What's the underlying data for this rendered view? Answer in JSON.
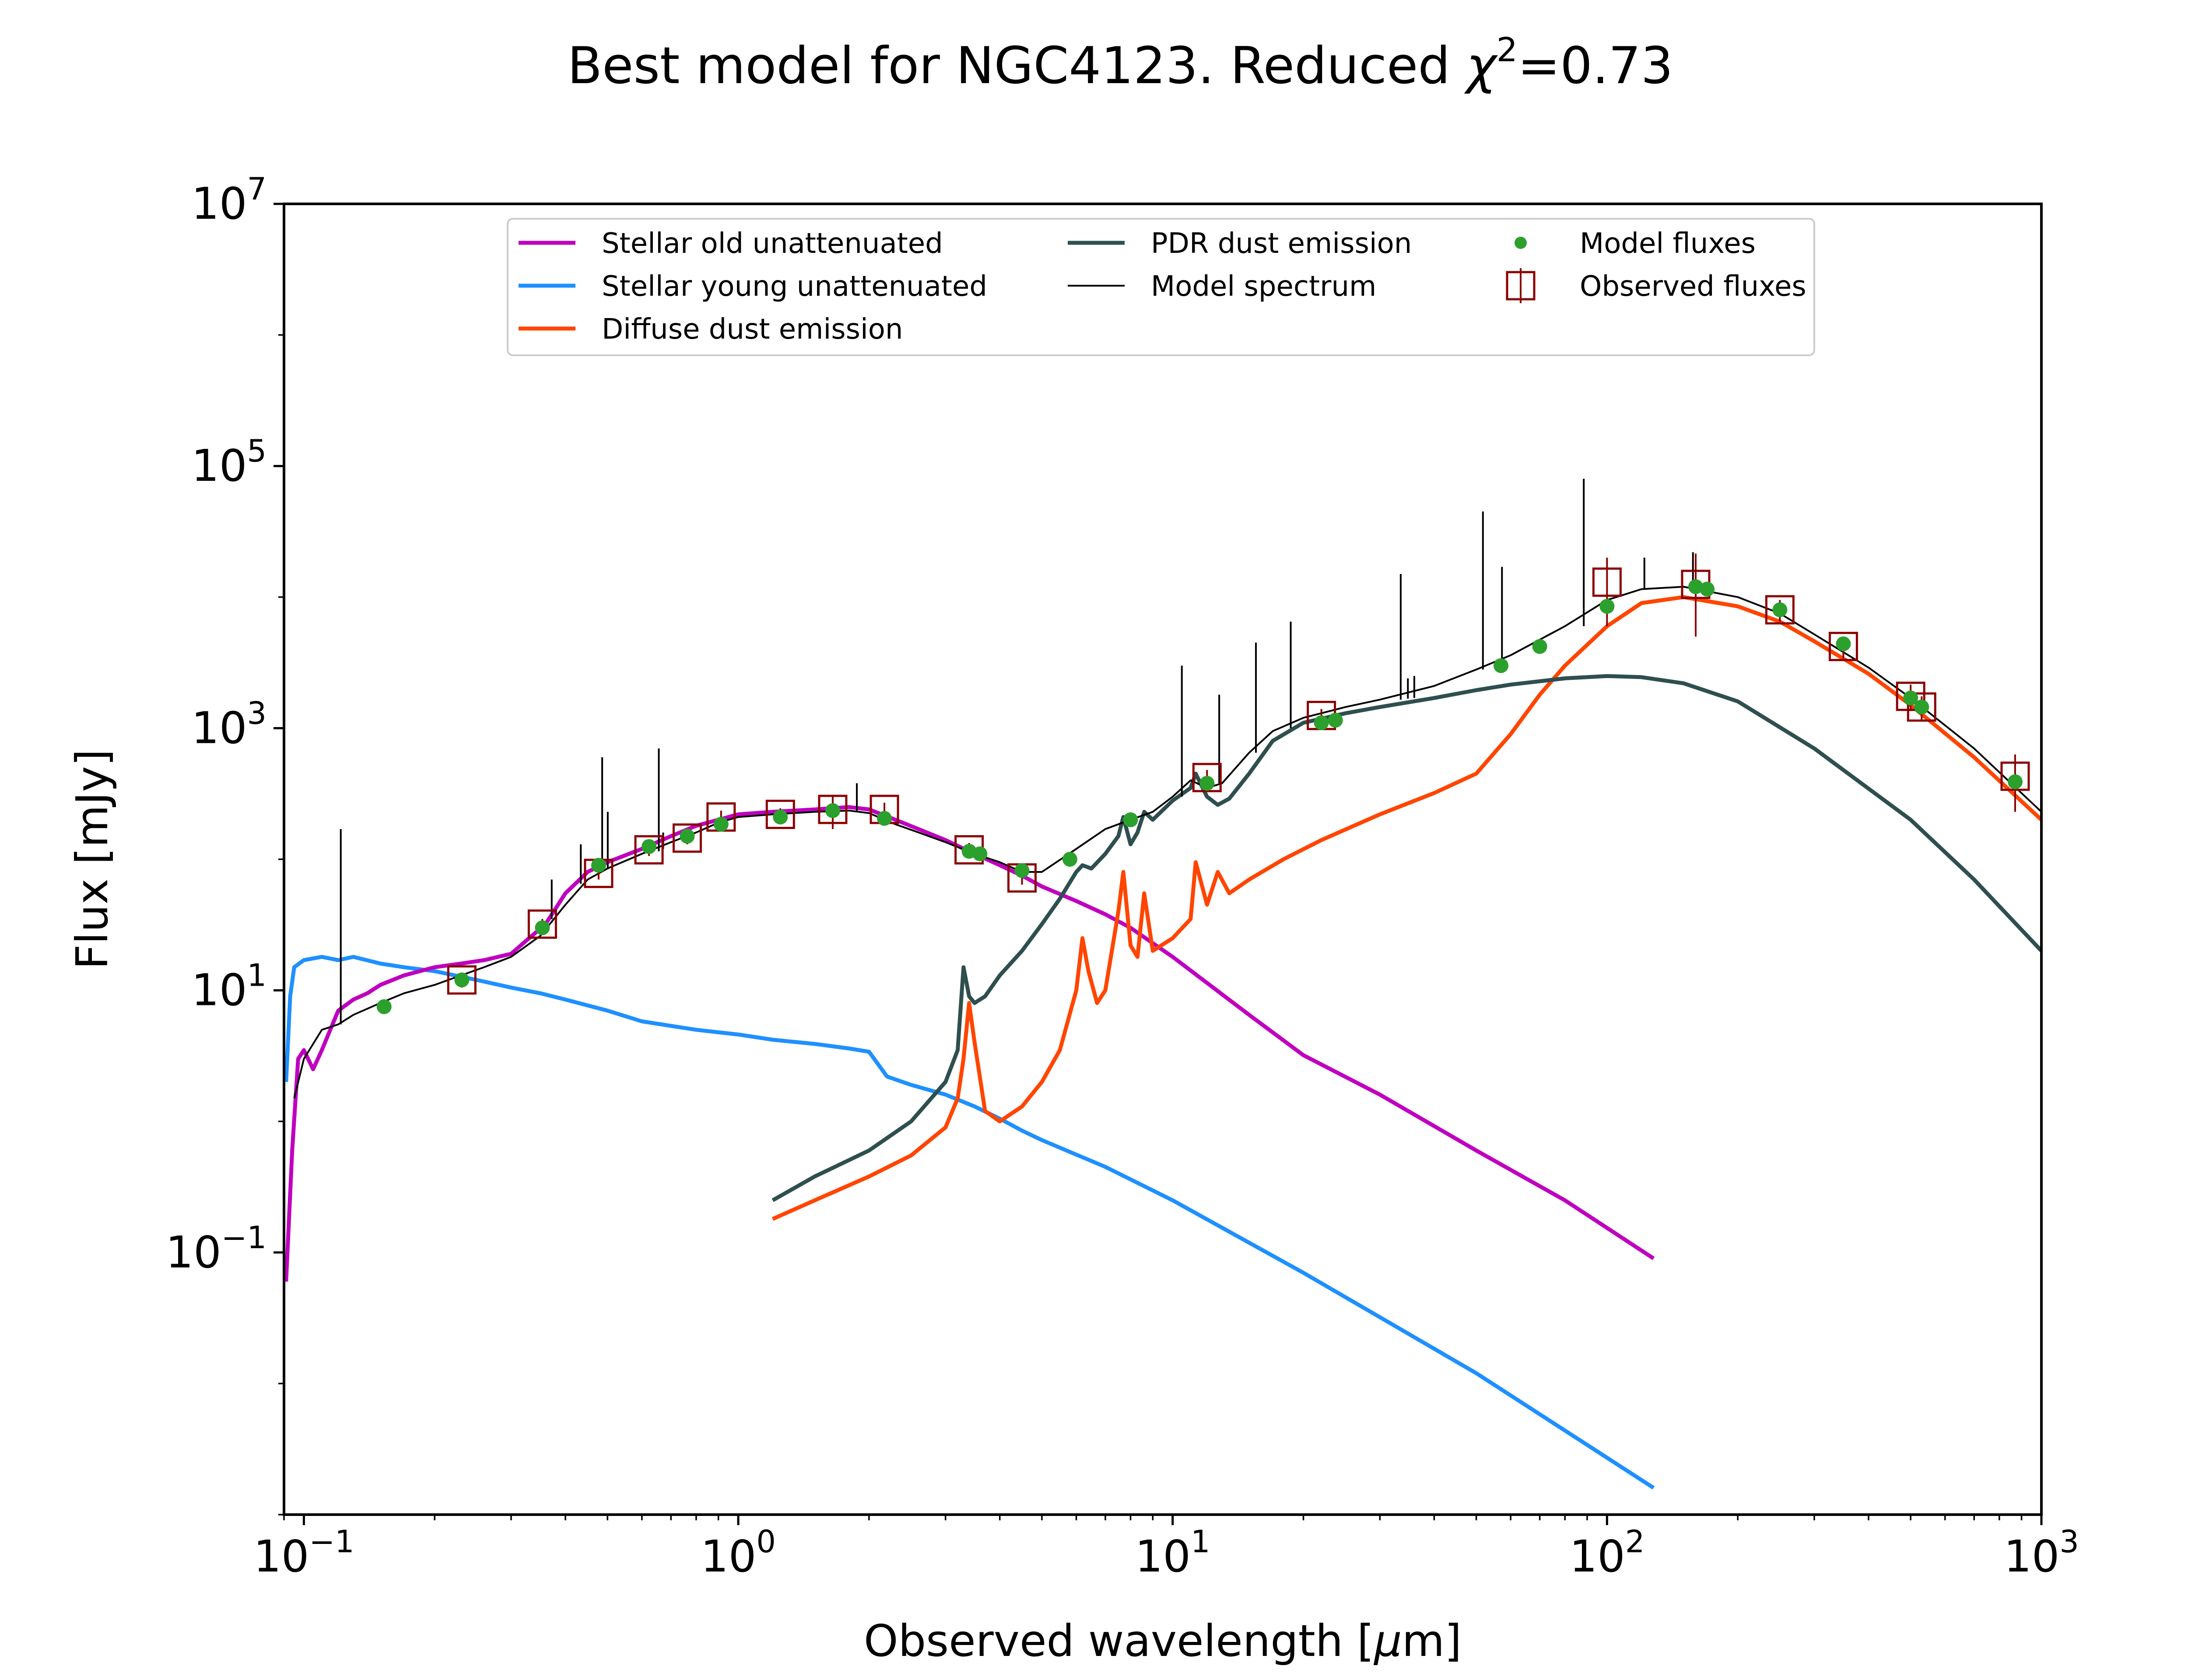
{
  "chart_data": {
    "type": "line",
    "title": "Best model for NGC4123. Reduced χ²=0.73",
    "title_parts": {
      "main": "Best model for NGC4123. Reduced ",
      "chi": "χ",
      "sup": "2",
      "value": "=0.73"
    },
    "xlabel": "Observed wavelength [μm]",
    "xlabel_parts": {
      "pre": "Observed wavelength [",
      "mu": "μ",
      "post": "m]"
    },
    "ylabel": "Flux [mJy]",
    "x_scale": "log",
    "y_scale": "log",
    "xlim": [
      0.09,
      1000
    ],
    "ylim": [
      0.001,
      10000000
    ],
    "x_ticks": [
      {
        "value": 0.1,
        "base": "10",
        "exp": "−1"
      },
      {
        "value": 1,
        "base": "10",
        "exp": "0"
      },
      {
        "value": 10,
        "base": "10",
        "exp": "1"
      },
      {
        "value": 100,
        "base": "10",
        "exp": "2"
      },
      {
        "value": 1000,
        "base": "10",
        "exp": "3"
      }
    ],
    "y_ticks": [
      {
        "value": 0.1,
        "base": "10",
        "exp": "−1"
      },
      {
        "value": 10,
        "base": "10",
        "exp": "1"
      },
      {
        "value": 1000,
        "base": "10",
        "exp": "3"
      },
      {
        "value": 100000,
        "base": "10",
        "exp": "5"
      },
      {
        "value": 10000000,
        "base": "10",
        "exp": "7"
      }
    ],
    "legend_position": "upper-center",
    "series": [
      {
        "name": "Stellar old unattenuated",
        "color": "#bf00bf",
        "x": [
          0.091,
          0.094,
          0.097,
          0.1,
          0.105,
          0.11,
          0.115,
          0.12,
          0.13,
          0.14,
          0.15,
          0.17,
          0.2,
          0.23,
          0.26,
          0.3,
          0.33,
          0.36,
          0.4,
          0.45,
          0.5,
          0.6,
          0.7,
          0.8,
          0.9,
          1.0,
          1.2,
          1.5,
          1.8,
          2.0,
          2.3,
          2.6,
          3.0,
          3.5,
          4.0,
          4.5,
          5.0,
          6.0,
          7.0,
          8.0,
          10,
          15,
          20,
          30,
          50,
          80,
          128
        ],
        "y": [
          0.06,
          0.6,
          3.0,
          3.5,
          2.5,
          3.5,
          5.0,
          7.0,
          8.5,
          9.5,
          11.0,
          13.0,
          15.0,
          16.0,
          17.0,
          19.0,
          25.0,
          32.0,
          55.0,
          80.0,
          95.0,
          120.0,
          150.0,
          180.0,
          200.0,
          220.0,
          230.0,
          240.0,
          250.0,
          240.0,
          200.0,
          170.0,
          140.0,
          110.0,
          90.0,
          75.0,
          62.0,
          48.0,
          38.0,
          30.0,
          18.0,
          6.5,
          3.2,
          1.6,
          0.6,
          0.25,
          0.09
        ]
      },
      {
        "name": "Stellar young unattenuated",
        "color": "#1e90ff",
        "x": [
          0.091,
          0.093,
          0.095,
          0.1,
          0.11,
          0.12,
          0.13,
          0.15,
          0.17,
          0.2,
          0.25,
          0.3,
          0.35,
          0.4,
          0.5,
          0.6,
          0.8,
          1.0,
          1.2,
          1.5,
          1.8,
          2.0,
          2.2,
          2.5,
          3.0,
          3.5,
          4.0,
          4.5,
          5.0,
          7.0,
          10,
          20,
          50,
          128
        ],
        "y": [
          2.0,
          9.0,
          15.0,
          17.0,
          18.0,
          17.0,
          18.0,
          16.0,
          15.0,
          14.0,
          12.0,
          10.5,
          9.5,
          8.5,
          7.0,
          5.8,
          5.0,
          4.6,
          4.2,
          3.9,
          3.6,
          3.4,
          2.2,
          1.9,
          1.6,
          1.3,
          1.05,
          0.85,
          0.72,
          0.45,
          0.25,
          0.07,
          0.012,
          0.0016
        ]
      },
      {
        "name": "Diffuse dust emission",
        "color": "#ff4500",
        "x": [
          1.2,
          1.5,
          2.0,
          2.5,
          3.0,
          3.2,
          3.3,
          3.4,
          3.5,
          3.7,
          4.0,
          4.5,
          5.0,
          5.5,
          6.0,
          6.2,
          6.4,
          6.7,
          7.0,
          7.5,
          7.7,
          8.0,
          8.3,
          8.6,
          9.0,
          10,
          11,
          11.3,
          12,
          12.7,
          13.5,
          15,
          18,
          22,
          30,
          40,
          50,
          60,
          70,
          80,
          100,
          120,
          150,
          200,
          250,
          300,
          400,
          500,
          700,
          1000
        ],
        "y": [
          0.18,
          0.25,
          0.38,
          0.55,
          0.9,
          1.5,
          3.0,
          8.0,
          4.0,
          1.2,
          1.0,
          1.3,
          2.0,
          3.5,
          10.0,
          25.0,
          14.0,
          8.0,
          10.0,
          40.0,
          80.0,
          22.0,
          18.0,
          55.0,
          20.0,
          25.0,
          35.0,
          95.0,
          45.0,
          80.0,
          55.0,
          70.0,
          100.0,
          140.0,
          220.0,
          320.0,
          450.0,
          900.0,
          1800.0,
          3000.0,
          6000.0,
          9000.0,
          10000.0,
          8500.0,
          6500.0,
          4600.0,
          2600.0,
          1500.0,
          600.0,
          200.0
        ]
      },
      {
        "name": "PDR dust emission",
        "color": "#2f4f4f",
        "x": [
          1.2,
          1.5,
          2.0,
          2.5,
          3.0,
          3.2,
          3.3,
          3.4,
          3.5,
          3.7,
          4.0,
          4.5,
          5.0,
          5.5,
          6.0,
          6.2,
          6.5,
          7.0,
          7.5,
          7.7,
          8.0,
          8.3,
          8.6,
          9.0,
          10,
          11,
          11.3,
          12,
          12.7,
          13.5,
          15,
          17,
          20,
          25,
          30,
          40,
          50,
          60,
          80,
          100,
          120,
          150,
          200,
          300,
          500,
          700,
          1000
        ],
        "y": [
          0.25,
          0.38,
          0.6,
          1.0,
          2.0,
          3.5,
          15.0,
          9.0,
          8.0,
          9.0,
          13.0,
          20.0,
          32.0,
          50.0,
          80.0,
          90.0,
          85.0,
          110.0,
          150.0,
          210.0,
          130.0,
          160.0,
          230.0,
          200.0,
          280.0,
          350.0,
          450.0,
          300.0,
          260.0,
          290.0,
          450.0,
          800.0,
          1100.0,
          1300.0,
          1450.0,
          1700.0,
          1950.0,
          2150.0,
          2400.0,
          2500.0,
          2450.0,
          2200.0,
          1600.0,
          700.0,
          200.0,
          70.0,
          20.0
        ]
      },
      {
        "name": "Model spectrum",
        "color": "#000000",
        "x": [
          0.095,
          0.1,
          0.11,
          0.12,
          0.13,
          0.15,
          0.17,
          0.2,
          0.23,
          0.26,
          0.3,
          0.35,
          0.4,
          0.45,
          0.5,
          0.6,
          0.7,
          0.8,
          0.9,
          1.0,
          1.2,
          1.5,
          1.8,
          2.0,
          2.3,
          2.6,
          3.0,
          3.5,
          4.0,
          4.5,
          5.0,
          6.0,
          7.0,
          8.0,
          9.0,
          10,
          11,
          12,
          13,
          15,
          17,
          20,
          25,
          30,
          40,
          50,
          60,
          80,
          100,
          120,
          150,
          200,
          250,
          300,
          400,
          500,
          700,
          1000
        ],
        "y": [
          1.5,
          3.0,
          5.0,
          5.5,
          6.5,
          8.0,
          9.5,
          11.0,
          13.0,
          15.0,
          18.0,
          26.0,
          45.0,
          70.0,
          85.0,
          110.0,
          135.0,
          160.0,
          190.0,
          210.0,
          220.0,
          230.0,
          235.0,
          225.0,
          185.0,
          160.0,
          135.0,
          110.0,
          95.0,
          80.0,
          80.0,
          120.0,
          170.0,
          200.0,
          230.0,
          300.0,
          400.0,
          350.0,
          380.0,
          650.0,
          950.0,
          1200.0,
          1450.0,
          1650.0,
          2100.0,
          2800.0,
          3600.0,
          6000.0,
          9500.0,
          11500.0,
          12000.0,
          10000.0,
          7500.0,
          5200.0,
          2900.0,
          1700.0,
          700.0,
          230.0
        ]
      },
      {
        "name": "Model fluxes",
        "color": "#2ca02c",
        "type": "scatter",
        "x": [
          0.153,
          0.231,
          0.354,
          0.477,
          0.623,
          0.763,
          0.913,
          1.25,
          1.65,
          2.17,
          3.4,
          3.6,
          4.5,
          5.8,
          8.0,
          12.0,
          22.0,
          23.7,
          57.0,
          70.0,
          100.0,
          160.0,
          170.0,
          250.0,
          350.0,
          500.0,
          530.0,
          870.0
        ],
        "y": [
          7.5,
          12.0,
          30.0,
          90.0,
          125.0,
          150.0,
          185.0,
          210.0,
          235.0,
          205.0,
          115.0,
          110.0,
          82.0,
          100.0,
          200.0,
          380.0,
          1100.0,
          1150.0,
          3000.0,
          4200.0,
          8500.0,
          12000.0,
          11500.0,
          8000.0,
          4400.0,
          1700.0,
          1450.0,
          390.0
        ]
      },
      {
        "name": "Observed fluxes",
        "color": "#8b0000",
        "type": "errorbar",
        "x": [
          0.231,
          0.354,
          0.477,
          0.623,
          0.763,
          0.913,
          1.25,
          1.65,
          2.17,
          3.4,
          4.5,
          12.0,
          22.0,
          100.0,
          160.0,
          250.0,
          350.0,
          500.0,
          530.0,
          870.0
        ],
        "y": [
          12.0,
          32.0,
          78.0,
          118.0,
          145.0,
          210.0,
          220.0,
          240.0,
          240.0,
          118.0,
          72.0,
          420.0,
          1250.0,
          13000.0,
          12500.0,
          8000.0,
          4200.0,
          1750.0,
          1450.0,
          430.0
        ],
        "yerr_low": [
          1.5,
          3.0,
          8.0,
          12.0,
          15.0,
          25.0,
          25.0,
          70.0,
          30.0,
          15.0,
          8.0,
          60.0,
          150.0,
          7000.0,
          7500.0,
          1500.0,
          800.0,
          400.0,
          300.0,
          200.0
        ],
        "yerr_high": [
          1.5,
          3.0,
          8.0,
          12.0,
          15.0,
          25.0,
          25.0,
          70.0,
          30.0,
          15.0,
          8.0,
          60.0,
          150.0,
          7000.0,
          9000.0,
          1500.0,
          800.0,
          400.0,
          300.0,
          200.0
        ]
      }
    ],
    "emission_lines": [
      {
        "x": 0.1216,
        "y_base": 5.5,
        "y_peak": 170
      },
      {
        "x": 0.372,
        "y_base": 35,
        "y_peak": 70
      },
      {
        "x": 0.434,
        "y_base": 65,
        "y_peak": 130
      },
      {
        "x": 0.4861,
        "y_base": 85,
        "y_peak": 600
      },
      {
        "x": 0.5007,
        "y_base": 85,
        "y_peak": 230
      },
      {
        "x": 0.6563,
        "y_base": 115,
        "y_peak": 700
      },
      {
        "x": 0.6717,
        "y_base": 120,
        "y_peak": 160
      },
      {
        "x": 1.875,
        "y_base": 235,
        "y_peak": 380
      },
      {
        "x": 10.5,
        "y_base": 300,
        "y_peak": 3000
      },
      {
        "x": 12.8,
        "y_base": 380,
        "y_peak": 1800
      },
      {
        "x": 15.55,
        "y_base": 650,
        "y_peak": 4500
      },
      {
        "x": 18.7,
        "y_base": 1000,
        "y_peak": 6500
      },
      {
        "x": 33.5,
        "y_base": 1650,
        "y_peak": 15000
      },
      {
        "x": 34.8,
        "y_base": 1680,
        "y_peak": 2400
      },
      {
        "x": 36.0,
        "y_base": 1700,
        "y_peak": 2500
      },
      {
        "x": 51.8,
        "y_base": 2800,
        "y_peak": 45000
      },
      {
        "x": 57.3,
        "y_base": 3200,
        "y_peak": 17000
      },
      {
        "x": 88.4,
        "y_base": 6000,
        "y_peak": 80000
      },
      {
        "x": 121.9,
        "y_base": 11500,
        "y_peak": 20000
      },
      {
        "x": 157.7,
        "y_base": 12000,
        "y_peak": 22000
      }
    ]
  }
}
